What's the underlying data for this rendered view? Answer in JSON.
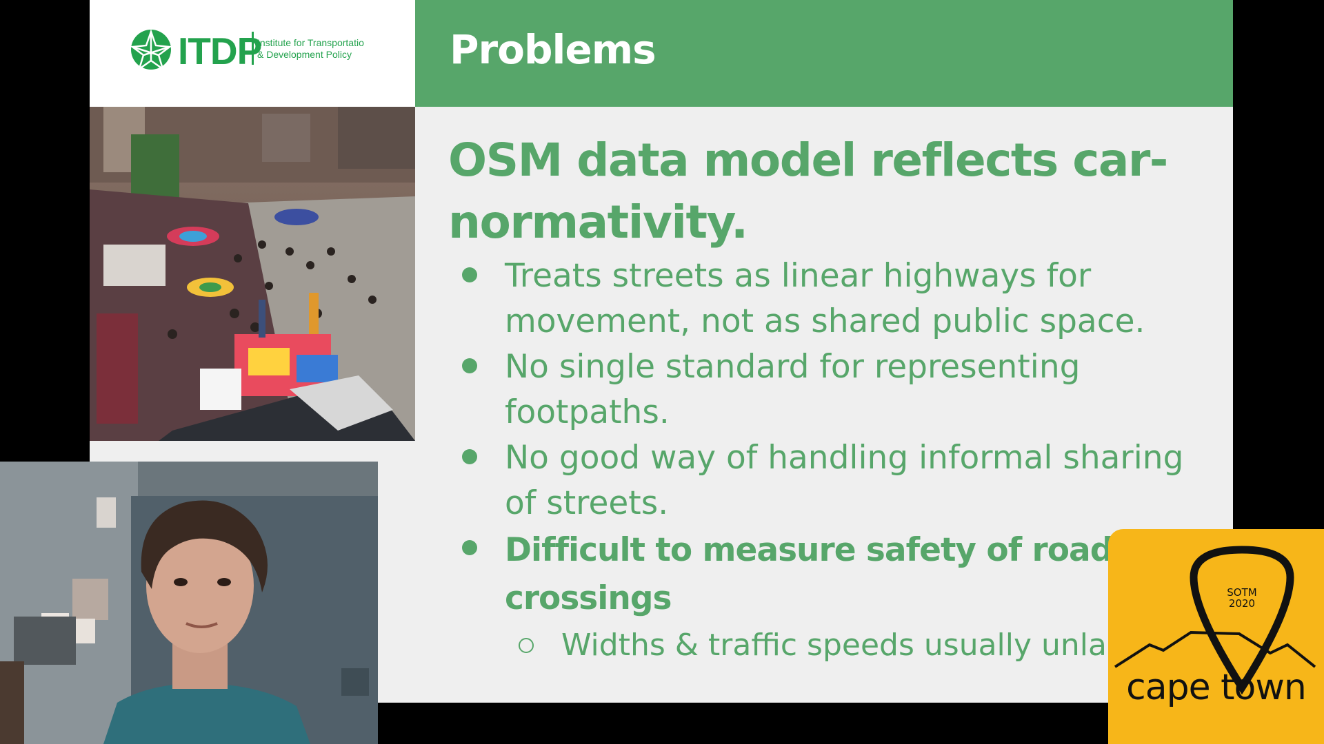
{
  "slide": {
    "title": "Problems",
    "heading": "OSM data model reflects car-normativity.",
    "bullets": [
      "Treats streets as linear highways for movement, not as shared public space.",
      "No single standard for representing footpaths.",
      "No good way of handling informal sharing of streets.",
      "Difficult to measure safety of road crossings"
    ],
    "sub_bullet": "Widths & traffic speeds usually unlabe"
  },
  "logo": {
    "name": "ITDP",
    "subtitle_line1": "Institute for Transportatio",
    "subtitle_line2": "& Development Policy"
  },
  "badge": {
    "sotm": "SOTM",
    "year": "2020",
    "city": "cape town"
  },
  "colors": {
    "header_green": "#57a66a",
    "logo_green": "#23a24d",
    "badge_yellow": "#f7b619"
  }
}
